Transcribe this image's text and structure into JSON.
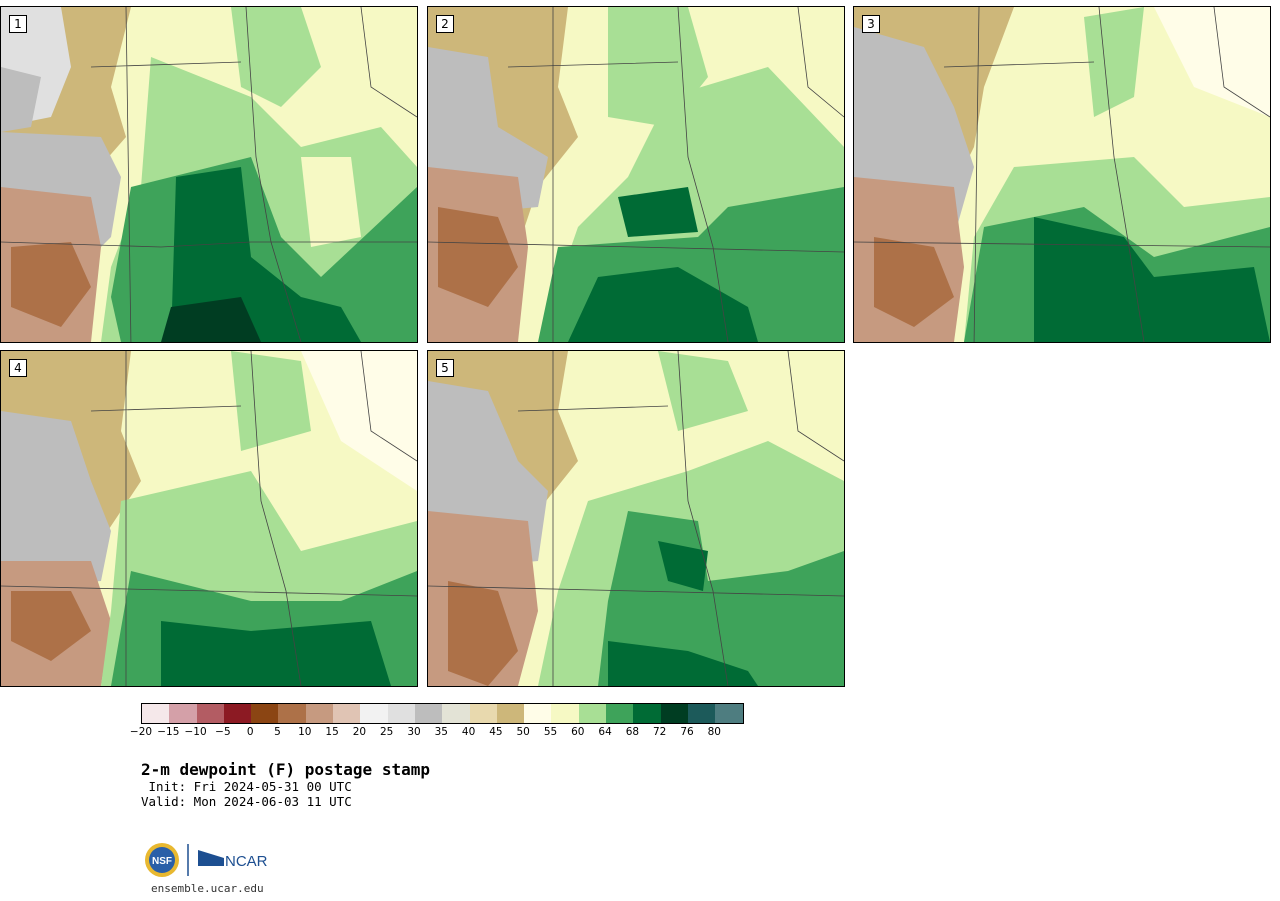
{
  "panels": [
    {
      "label": "1"
    },
    {
      "label": "2"
    },
    {
      "label": "3"
    },
    {
      "label": "4"
    },
    {
      "label": "5"
    }
  ],
  "colorbar": {
    "colors": [
      "#f5e8ea",
      "#d4a0a8",
      "#b35c63",
      "#8c1a23",
      "#8b4513",
      "#ad7148",
      "#c69a80",
      "#e0c4b4",
      "#f2f2f2",
      "#e0e0e0",
      "#bdbdbd",
      "#e3e3d6",
      "#e8d9ae",
      "#cdb77a",
      "#fffde8",
      "#f6f9c4",
      "#a8df95",
      "#3ea35a",
      "#006b35",
      "#003d22",
      "#1c5a5a",
      "#4e7d80"
    ],
    "tick_labels": [
      "−20",
      "−15",
      "−10",
      "−5",
      "0",
      "5",
      "10",
      "15",
      "20",
      "25",
      "30",
      "35",
      "40",
      "45",
      "50",
      "55",
      "60",
      "64",
      "68",
      "72",
      "76",
      "80"
    ]
  },
  "title": "2-m dewpoint (F) postage stamp",
  "init": " Init: Fri 2024-05-31 00 UTC",
  "valid": "Valid: Mon 2024-06-03 11 UTC",
  "logos": {
    "nsf": "NSF",
    "ncar": "NCAR"
  },
  "url": "ensemble.ucar.edu"
}
